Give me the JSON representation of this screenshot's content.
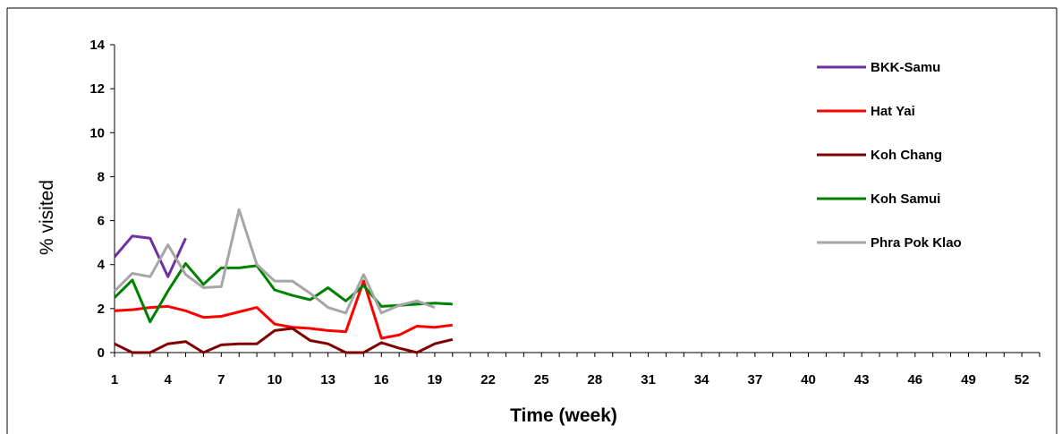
{
  "chart_data": {
    "type": "line",
    "title": "",
    "xlabel": "Time (week)",
    "ylabel": "% visited",
    "xlim": [
      1,
      53
    ],
    "ylim": [
      0,
      14
    ],
    "y_ticks": [
      0,
      2,
      4,
      6,
      8,
      10,
      12,
      14
    ],
    "x_ticks": [
      1,
      4,
      7,
      10,
      13,
      16,
      19,
      22,
      25,
      28,
      31,
      34,
      37,
      40,
      43,
      46,
      49,
      52
    ],
    "grid": false,
    "legend_position": "right",
    "series": [
      {
        "name": "BKK-Samu",
        "color": "#7030a0",
        "x": [
          1,
          2,
          3,
          4,
          5
        ],
        "y": [
          4.35,
          5.3,
          5.2,
          3.45,
          5.2
        ]
      },
      {
        "name": "Hat Yai",
        "color": "#ff0000",
        "x": [
          1,
          2,
          3,
          4,
          5,
          6,
          7,
          8,
          9,
          10,
          11,
          12,
          13,
          14,
          15,
          16,
          17,
          18,
          19,
          20
        ],
        "y": [
          1.9,
          1.95,
          2.05,
          2.1,
          1.9,
          1.6,
          1.65,
          1.85,
          2.05,
          1.3,
          1.15,
          1.1,
          1.0,
          0.95,
          3.25,
          0.65,
          0.8,
          1.2,
          1.15,
          1.25
        ]
      },
      {
        "name": "Koh Chang",
        "color": "#800000",
        "x": [
          1,
          2,
          3,
          4,
          5,
          6,
          7,
          8,
          9,
          10,
          11,
          12,
          13,
          14,
          15,
          16,
          17,
          18,
          19,
          20
        ],
        "y": [
          0.4,
          0.0,
          0.0,
          0.4,
          0.5,
          0.0,
          0.35,
          0.4,
          0.4,
          1.0,
          1.1,
          0.55,
          0.4,
          0.0,
          0.0,
          0.45,
          0.2,
          0.0,
          0.4,
          0.6
        ]
      },
      {
        "name": "Koh Samui",
        "color": "#008000",
        "x": [
          1,
          2,
          3,
          4,
          5,
          6,
          7,
          8,
          9,
          10,
          11,
          12,
          13,
          14,
          15,
          16,
          17,
          18,
          19,
          20
        ],
        "y": [
          2.5,
          3.3,
          1.4,
          2.8,
          4.05,
          3.1,
          3.85,
          3.85,
          3.95,
          2.85,
          2.6,
          2.4,
          2.95,
          2.35,
          3.05,
          2.1,
          2.15,
          2.2,
          2.25,
          2.2
        ]
      },
      {
        "name": "Phra Pok Klao",
        "color": "#a6a6a6",
        "x": [
          1,
          2,
          3,
          4,
          5,
          6,
          7,
          8,
          9,
          10,
          11,
          12,
          13,
          14,
          15,
          16,
          17,
          18,
          19
        ],
        "y": [
          2.8,
          3.6,
          3.45,
          4.9,
          3.55,
          2.95,
          3.0,
          6.5,
          4.0,
          3.25,
          3.25,
          2.7,
          2.05,
          1.8,
          3.55,
          1.8,
          2.15,
          2.35,
          2.05
        ]
      }
    ]
  }
}
